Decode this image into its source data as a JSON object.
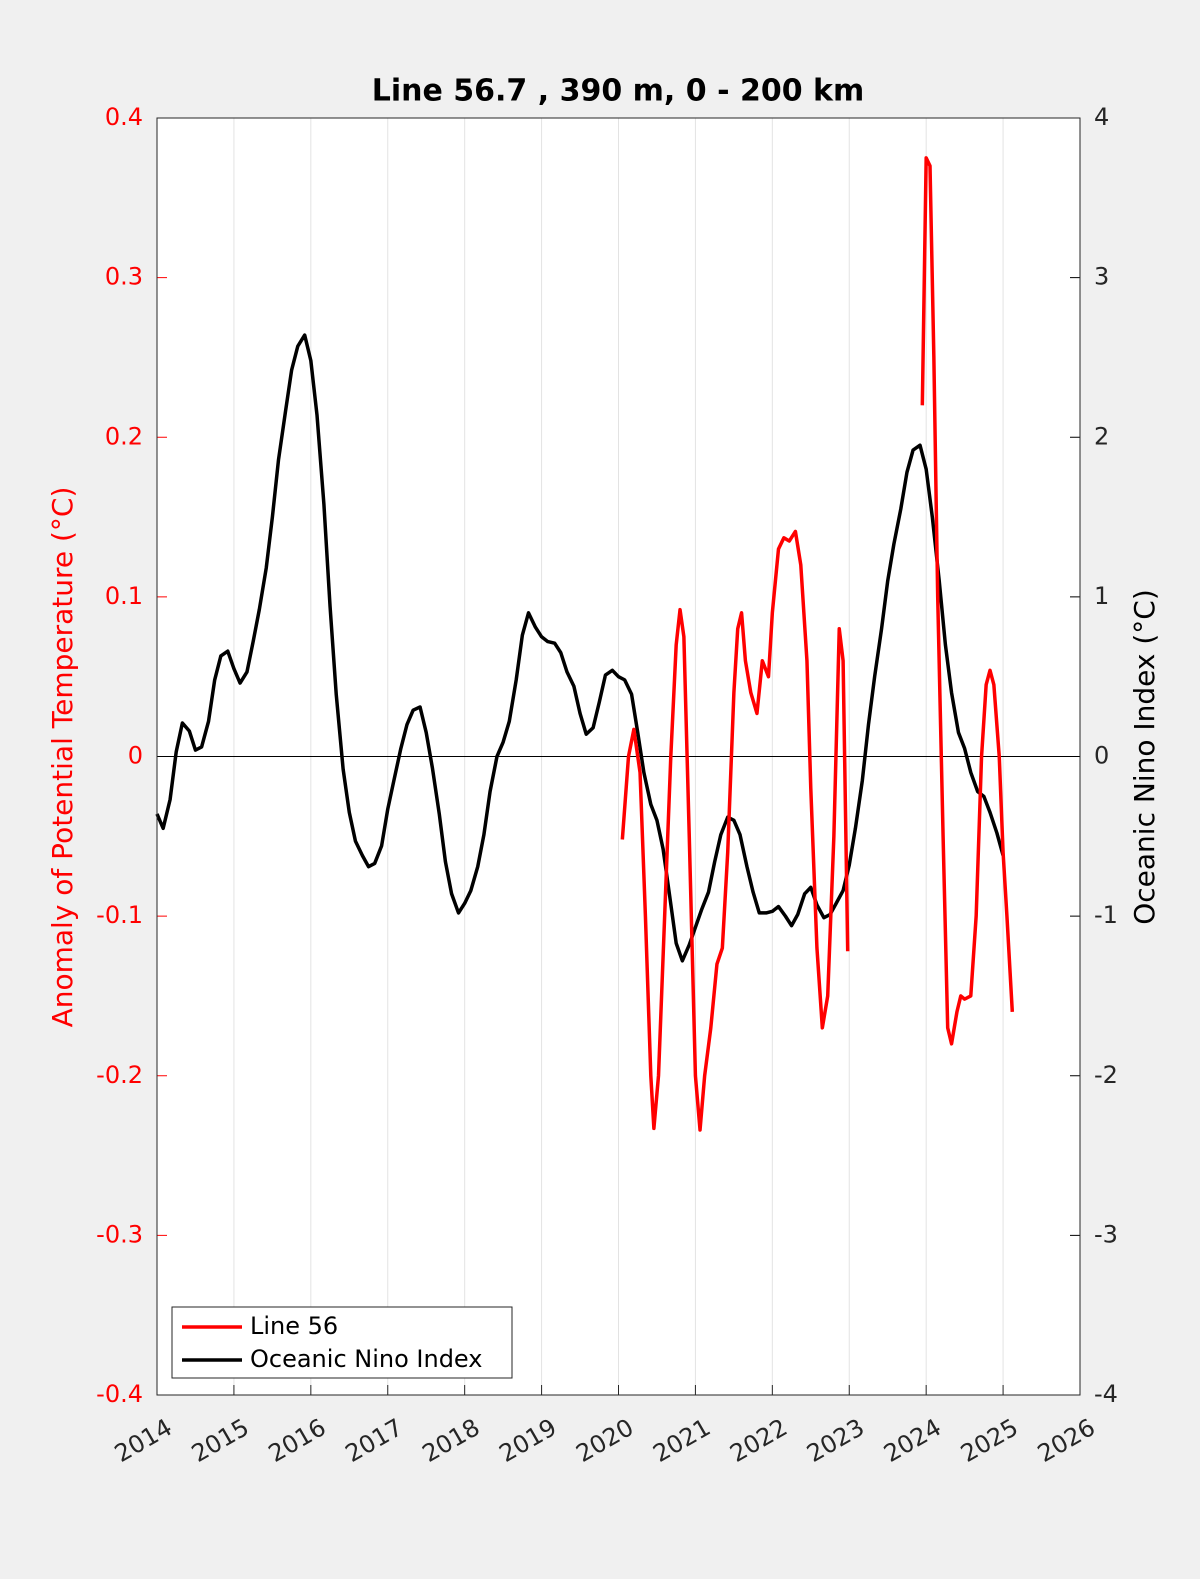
{
  "chart_data": {
    "type": "line",
    "title": "Line 56.7 , 390 m, 0 - 200 km",
    "ylabel": "Anomaly of Potential Temperature (°C)",
    "y2label": "Oceanic Nino Index (°C)",
    "xlim": [
      2014,
      2026
    ],
    "xticks": [
      2014,
      2015,
      2016,
      2017,
      2018,
      2019,
      2020,
      2021,
      2022,
      2023,
      2024,
      2025,
      2026
    ],
    "ylim": [
      -0.4,
      0.4
    ],
    "yticks": [
      -0.4,
      -0.3,
      -0.2,
      -0.1,
      0,
      0.1,
      0.2,
      0.3,
      0.4
    ],
    "y2lim": [
      -4,
      4
    ],
    "y2ticks": [
      -4,
      -3,
      -2,
      -1,
      0,
      1,
      2,
      3,
      4
    ],
    "grid": true,
    "legend": "lower left",
    "series": [
      {
        "name": "Line 56",
        "color": "#ff0000",
        "x": [
          2020.05,
          2020.13,
          2020.2,
          2020.28,
          2020.35,
          2020.42,
          2020.46,
          2020.52,
          2020.6,
          2020.68,
          2020.75,
          2020.8,
          2020.85,
          2020.92,
          2021.0,
          2021.06,
          2021.12,
          2021.2,
          2021.28,
          2021.35,
          2021.42,
          2021.5,
          2021.55,
          2021.6,
          2021.65,
          2021.72,
          2021.8,
          2021.87,
          2021.95,
          2022.0,
          2022.08,
          2022.15,
          2022.22,
          2022.3,
          2022.37,
          2022.45,
          2022.5,
          2022.58,
          2022.65,
          2022.72,
          2022.8,
          2022.87,
          2022.92,
          2022.98,
          null,
          2023.95,
          2024.0,
          2024.05,
          2024.1,
          2024.15,
          2024.22,
          2024.28,
          2024.33,
          2024.4,
          2024.45,
          2024.5,
          2024.58,
          2024.65,
          2024.72,
          2024.78,
          2024.83,
          2024.88,
          2024.95,
          2025.0,
          2025.05,
          2025.12
        ],
        "values": [
          -0.052,
          0.0,
          0.017,
          -0.01,
          -0.1,
          -0.2,
          -0.233,
          -0.2,
          -0.1,
          0.0,
          0.07,
          0.092,
          0.075,
          -0.05,
          -0.2,
          -0.234,
          -0.2,
          -0.17,
          -0.13,
          -0.12,
          -0.06,
          0.04,
          0.08,
          0.09,
          0.06,
          0.04,
          0.027,
          0.06,
          0.05,
          0.09,
          0.13,
          0.137,
          0.135,
          0.141,
          0.12,
          0.06,
          -0.02,
          -0.12,
          -0.17,
          -0.15,
          -0.05,
          0.08,
          0.06,
          -0.122,
          null,
          0.22,
          0.375,
          0.37,
          0.25,
          0.1,
          -0.05,
          -0.17,
          -0.18,
          -0.16,
          -0.15,
          -0.152,
          -0.15,
          -0.1,
          0.0,
          0.045,
          0.054,
          0.045,
          0.0,
          -0.06,
          -0.1,
          -0.16
        ]
      },
      {
        "name": "Oceanic Nino Index",
        "color": "#000000",
        "axis": "y2",
        "x": [
          2014.0,
          2014.08,
          2014.17,
          2014.25,
          2014.33,
          2014.42,
          2014.5,
          2014.58,
          2014.67,
          2014.75,
          2014.83,
          2014.92,
          2015.0,
          2015.08,
          2015.17,
          2015.25,
          2015.33,
          2015.42,
          2015.5,
          2015.58,
          2015.67,
          2015.75,
          2015.83,
          2015.92,
          2016.0,
          2016.08,
          2016.17,
          2016.25,
          2016.33,
          2016.42,
          2016.5,
          2016.58,
          2016.67,
          2016.75,
          2016.83,
          2016.92,
          2017.0,
          2017.08,
          2017.17,
          2017.25,
          2017.33,
          2017.42,
          2017.5,
          2017.58,
          2017.67,
          2017.75,
          2017.83,
          2017.92,
          2018.0,
          2018.08,
          2018.17,
          2018.25,
          2018.33,
          2018.42,
          2018.5,
          2018.58,
          2018.67,
          2018.75,
          2018.83,
          2018.92,
          2019.0,
          2019.08,
          2019.17,
          2019.25,
          2019.33,
          2019.42,
          2019.5,
          2019.58,
          2019.67,
          2019.75,
          2019.83,
          2019.92,
          2020.0,
          2020.08,
          2020.17,
          2020.25,
          2020.33,
          2020.42,
          2020.5,
          2020.58,
          2020.67,
          2020.75,
          2020.83,
          2020.92,
          2021.0,
          2021.08,
          2021.17,
          2021.25,
          2021.33,
          2021.42,
          2021.5,
          2021.58,
          2021.67,
          2021.75,
          2021.83,
          2021.92,
          2022.0,
          2022.08,
          2022.17,
          2022.25,
          2022.33,
          2022.42,
          2022.5,
          2022.58,
          2022.67,
          2022.75,
          2022.83,
          2022.92,
          2023.0,
          2023.08,
          2023.17,
          2023.25,
          2023.33,
          2023.42,
          2023.5,
          2023.58,
          2023.67,
          2023.75,
          2023.83,
          2023.92,
          2024.0,
          2024.08,
          2024.17,
          2024.25,
          2024.33,
          2024.42,
          2024.5,
          2024.58,
          2024.67,
          2024.75,
          2024.83,
          2024.92,
          2025.0
        ],
        "values": [
          -0.36,
          -0.45,
          -0.27,
          0.03,
          0.21,
          0.16,
          0.04,
          0.06,
          0.22,
          0.48,
          0.63,
          0.66,
          0.55,
          0.46,
          0.53,
          0.72,
          0.92,
          1.18,
          1.5,
          1.86,
          2.16,
          2.42,
          2.57,
          2.64,
          2.48,
          2.14,
          1.58,
          0.94,
          0.39,
          -0.08,
          -0.35,
          -0.53,
          -0.62,
          -0.69,
          -0.67,
          -0.56,
          -0.33,
          -0.15,
          0.05,
          0.2,
          0.29,
          0.31,
          0.15,
          -0.07,
          -0.36,
          -0.66,
          -0.86,
          -0.98,
          -0.92,
          -0.84,
          -0.69,
          -0.49,
          -0.22,
          0.0,
          0.09,
          0.22,
          0.48,
          0.76,
          0.9,
          0.81,
          0.75,
          0.72,
          0.71,
          0.65,
          0.53,
          0.44,
          0.27,
          0.14,
          0.18,
          0.34,
          0.51,
          0.54,
          0.5,
          0.48,
          0.39,
          0.15,
          -0.1,
          -0.3,
          -0.4,
          -0.58,
          -0.89,
          -1.17,
          -1.28,
          -1.18,
          -1.07,
          -0.96,
          -0.85,
          -0.66,
          -0.49,
          -0.38,
          -0.4,
          -0.49,
          -0.69,
          -0.85,
          -0.98,
          -0.98,
          -0.97,
          -0.94,
          -1.0,
          -1.06,
          -0.99,
          -0.86,
          -0.82,
          -0.93,
          -1.01,
          -0.99,
          -0.92,
          -0.84,
          -0.68,
          -0.45,
          -0.15,
          0.2,
          0.5,
          0.8,
          1.1,
          1.33,
          1.55,
          1.78,
          1.92,
          1.95,
          1.8,
          1.5,
          1.1,
          0.7,
          0.4,
          0.15,
          0.05,
          -0.1,
          -0.22,
          -0.25,
          -0.35,
          -0.48,
          -0.62
        ]
      }
    ]
  }
}
